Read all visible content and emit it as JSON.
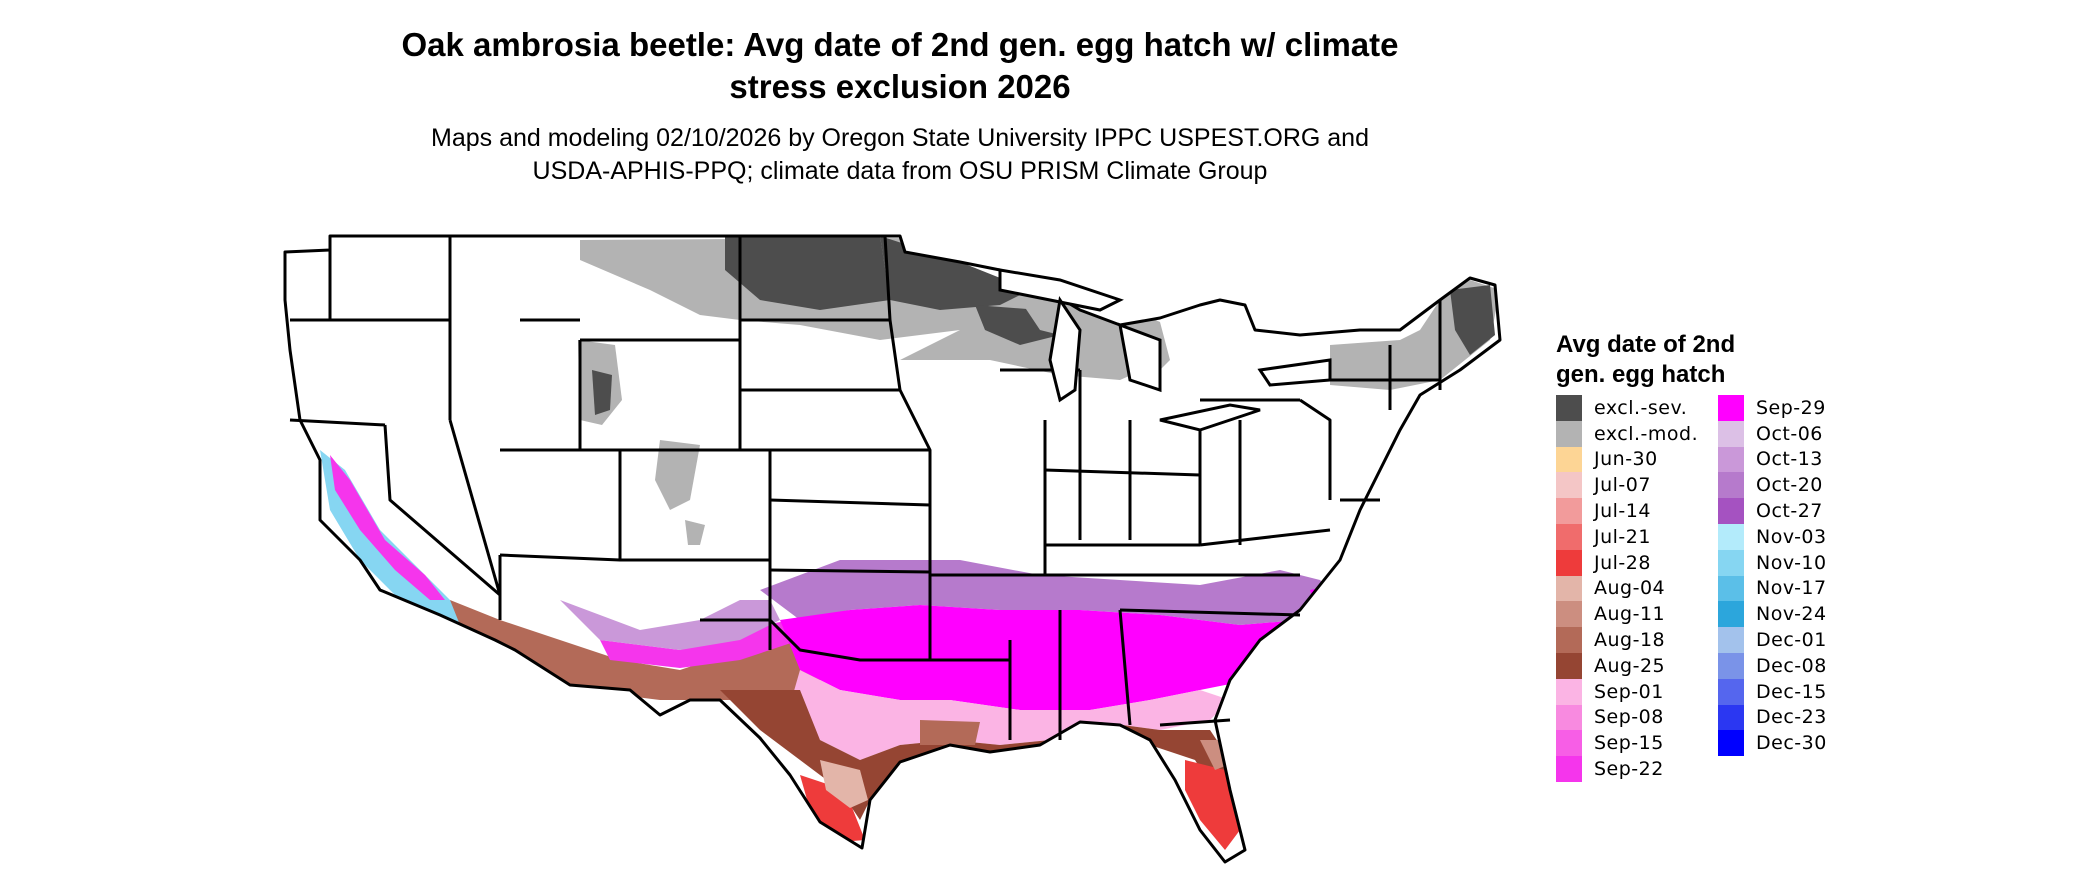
{
  "title_line1": "Oak ambrosia beetle: Avg date of 2nd gen. egg hatch w/ climate",
  "title_line2": "stress exclusion 2026",
  "subtitle_line1": "Maps and modeling 02/10/2026 by Oregon State University IPPC USPEST.ORG and",
  "subtitle_line2": "USDA-APHIS-PPQ; climate data from OSU PRISM Climate Group",
  "legend": {
    "title_line1": "Avg date of 2nd",
    "title_line2": "gen. egg hatch",
    "col1": [
      {
        "label": "excl.-sev.",
        "color": "#4d4d4d"
      },
      {
        "label": "excl.-mod.",
        "color": "#b3b3b3"
      },
      {
        "label": "Jun-30",
        "color": "#fdd595"
      },
      {
        "label": "Jul-07",
        "color": "#f4c6c6"
      },
      {
        "label": "Jul-14",
        "color": "#f29b9b"
      },
      {
        "label": "Jul-21",
        "color": "#f06c6c"
      },
      {
        "label": "Jul-28",
        "color": "#ee3b3b"
      },
      {
        "label": "Aug-04",
        "color": "#e3b5a9"
      },
      {
        "label": "Aug-11",
        "color": "#cc8e80"
      },
      {
        "label": "Aug-18",
        "color": "#b36a58"
      },
      {
        "label": "Aug-25",
        "color": "#954533"
      },
      {
        "label": "Sep-01",
        "color": "#fbb4e4"
      },
      {
        "label": "Sep-08",
        "color": "#f88ae0"
      },
      {
        "label": "Sep-15",
        "color": "#f75ee6"
      },
      {
        "label": "Sep-22",
        "color": "#f535ec"
      }
    ],
    "col2": [
      {
        "label": "Sep-29",
        "color": "#ff00ff"
      },
      {
        "label": "Oct-06",
        "color": "#dcc0e6"
      },
      {
        "label": "Oct-13",
        "color": "#ca98d9"
      },
      {
        "label": "Oct-20",
        "color": "#b67acc"
      },
      {
        "label": "Oct-27",
        "color": "#a552c1"
      },
      {
        "label": "Nov-03",
        "color": "#b3ebfb"
      },
      {
        "label": "Nov-10",
        "color": "#86d6f2"
      },
      {
        "label": "Nov-17",
        "color": "#5bbfe8"
      },
      {
        "label": "Nov-24",
        "color": "#2ca6dc"
      },
      {
        "label": "Dec-01",
        "color": "#a3c2ec"
      },
      {
        "label": "Dec-08",
        "color": "#7a93e8"
      },
      {
        "label": "Dec-15",
        "color": "#5566ee"
      },
      {
        "label": "Dec-23",
        "color": "#2b37f2"
      },
      {
        "label": "Dec-30",
        "color": "#0000ff"
      }
    ]
  }
}
